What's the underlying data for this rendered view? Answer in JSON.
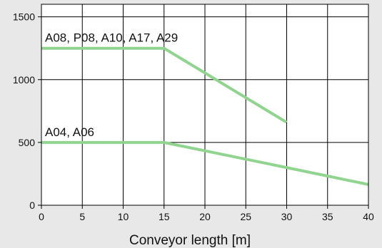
{
  "chart_data": {
    "type": "line",
    "xlabel": "Conveyor length [m]",
    "ylabel": "",
    "xlim": [
      0,
      40
    ],
    "ylim": [
      0,
      1600
    ],
    "xticks": [
      0,
      5,
      10,
      15,
      20,
      25,
      30,
      35,
      40
    ],
    "yticks": [
      0,
      500,
      1000,
      1500
    ],
    "grid": true,
    "line_color": "#90d490",
    "series": [
      {
        "name": "A08, P08, A10, A17, A29",
        "x": [
          0,
          15,
          30
        ],
        "y": [
          1250,
          1250,
          660
        ]
      },
      {
        "name": "A04, A06",
        "x": [
          0,
          15,
          30,
          40
        ],
        "y": [
          500,
          500,
          300,
          165
        ]
      }
    ]
  }
}
